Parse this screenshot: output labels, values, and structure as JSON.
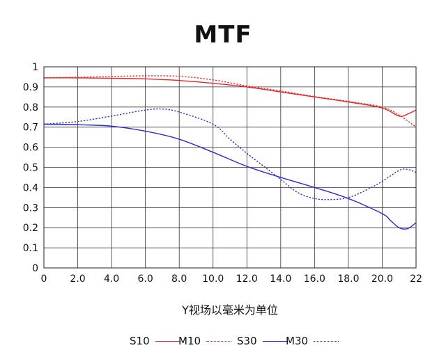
{
  "chart_data": {
    "type": "line",
    "title": "MTF",
    "xlabel": "Y视场以毫米为单位",
    "ylabel": "",
    "xlim": [
      0,
      22
    ],
    "ylim": [
      0,
      1
    ],
    "x_ticks": [
      "0",
      "2.0",
      "4.0",
      "6.0",
      "8.0",
      "10.0",
      "12.0",
      "14.0",
      "16.0",
      "18.0",
      "20.0",
      "22"
    ],
    "y_ticks": [
      "0",
      "0.1",
      "0.2",
      "0.3",
      "0.4",
      "0.5",
      "0.6",
      "0.7",
      "0.8",
      "0.9",
      "1"
    ],
    "grid": true,
    "legend_position": "bottom",
    "series": [
      {
        "name": "S10",
        "color": "#e8262a",
        "style": "solid",
        "points": [
          [
            0,
            0.945
          ],
          [
            2,
            0.945
          ],
          [
            4,
            0.943
          ],
          [
            6,
            0.94
          ],
          [
            8,
            0.932
          ],
          [
            10,
            0.918
          ],
          [
            12,
            0.9
          ],
          [
            14,
            0.875
          ],
          [
            16,
            0.85
          ],
          [
            18,
            0.825
          ],
          [
            20,
            0.795
          ],
          [
            21,
            0.755
          ],
          [
            21.5,
            0.765
          ],
          [
            22,
            0.785
          ]
        ]
      },
      {
        "name": "M10",
        "color": "#e8262a",
        "style": "dotted",
        "points": [
          [
            0,
            0.945
          ],
          [
            2,
            0.948
          ],
          [
            4,
            0.952
          ],
          [
            6,
            0.955
          ],
          [
            8,
            0.953
          ],
          [
            10,
            0.935
          ],
          [
            12,
            0.905
          ],
          [
            14,
            0.88
          ],
          [
            16,
            0.852
          ],
          [
            18,
            0.828
          ],
          [
            20,
            0.8
          ],
          [
            21,
            0.76
          ],
          [
            22,
            0.7
          ]
        ]
      },
      {
        "name": "S30",
        "color": "#2a2ad8",
        "style": "solid",
        "points": [
          [
            0,
            0.715
          ],
          [
            2,
            0.712
          ],
          [
            4,
            0.705
          ],
          [
            6,
            0.68
          ],
          [
            8,
            0.64
          ],
          [
            10,
            0.575
          ],
          [
            12,
            0.505
          ],
          [
            14,
            0.45
          ],
          [
            16,
            0.4
          ],
          [
            18,
            0.345
          ],
          [
            20,
            0.27
          ],
          [
            20.5,
            0.235
          ],
          [
            21,
            0.2
          ],
          [
            21.5,
            0.195
          ],
          [
            22,
            0.225
          ]
        ]
      },
      {
        "name": "M30",
        "color": "#2a2ad8",
        "style": "dotted",
        "points": [
          [
            0,
            0.715
          ],
          [
            2,
            0.728
          ],
          [
            4,
            0.755
          ],
          [
            6,
            0.785
          ],
          [
            7,
            0.79
          ],
          [
            8,
            0.775
          ],
          [
            10,
            0.715
          ],
          [
            11,
            0.64
          ],
          [
            12,
            0.57
          ],
          [
            13,
            0.505
          ],
          [
            14,
            0.44
          ],
          [
            15,
            0.375
          ],
          [
            16,
            0.345
          ],
          [
            17,
            0.34
          ],
          [
            18,
            0.35
          ],
          [
            19,
            0.385
          ],
          [
            20,
            0.43
          ],
          [
            21,
            0.485
          ],
          [
            21.5,
            0.49
          ],
          [
            22,
            0.475
          ]
        ]
      }
    ]
  }
}
